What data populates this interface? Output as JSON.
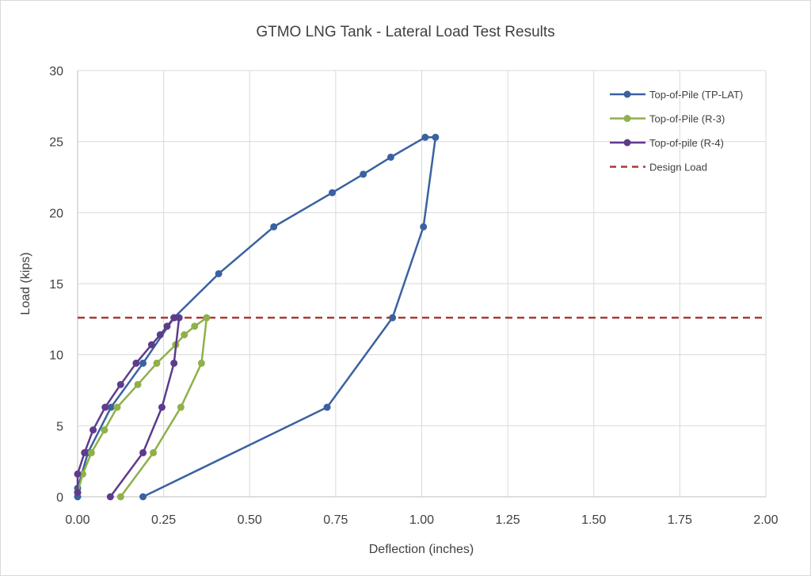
{
  "chart_data": {
    "type": "scatter",
    "title": "GTMO LNG Tank - Lateral Load Test Results",
    "xlabel": "Deflection (inches)",
    "ylabel": "Load (kips)",
    "xlim": [
      0,
      2.0
    ],
    "ylim": [
      0,
      30
    ],
    "xticks": [
      "0.00",
      "0.25",
      "0.50",
      "0.75",
      "1.00",
      "1.25",
      "1.50",
      "1.75",
      "2.00"
    ],
    "yticks": [
      "0",
      "5",
      "10",
      "15",
      "20",
      "25",
      "30"
    ],
    "grid": true,
    "legend_position": "top-right",
    "series": [
      {
        "name": "Top-of-Pile (TP-LAT)",
        "color": "#3a62a0",
        "x": [
          0,
          0,
          0.03,
          0.097,
          0.19,
          0.28,
          0.41,
          0.57,
          0.74,
          0.83,
          0.91,
          1.01,
          1.04,
          1.005,
          0.915,
          0.725,
          0.19
        ],
        "y": [
          0,
          0.6,
          3.1,
          6.3,
          9.4,
          12.6,
          15.7,
          19.0,
          21.4,
          22.7,
          23.9,
          25.3,
          25.3,
          19.0,
          12.6,
          6.3,
          0
        ]
      },
      {
        "name": "Top-of-Pile (R-3)",
        "color": "#8fb04a",
        "x": [
          0,
          0.015,
          0.04,
          0.078,
          0.115,
          0.175,
          0.23,
          0.285,
          0.31,
          0.34,
          0.375,
          0.36,
          0.3,
          0.22,
          0.125
        ],
        "y": [
          0.3,
          1.6,
          3.1,
          4.7,
          6.3,
          7.9,
          9.4,
          10.7,
          11.4,
          12.0,
          12.6,
          9.4,
          6.3,
          3.1,
          0
        ]
      },
      {
        "name": "Top-of-pile (R-4)",
        "color": "#5e3b8c",
        "x": [
          0,
          0,
          0.02,
          0.045,
          0.08,
          0.125,
          0.17,
          0.215,
          0.24,
          0.26,
          0.28,
          0.295,
          0.28,
          0.245,
          0.19,
          0.095
        ],
        "y": [
          0.3,
          1.6,
          3.1,
          4.7,
          6.3,
          7.9,
          9.4,
          10.7,
          11.4,
          12.0,
          12.6,
          12.6,
          9.4,
          6.3,
          3.1,
          0
        ]
      }
    ],
    "reference_lines": [
      {
        "name": "Design Load",
        "color": "#a83a32",
        "y": 12.6,
        "style": "dashed"
      }
    ]
  }
}
